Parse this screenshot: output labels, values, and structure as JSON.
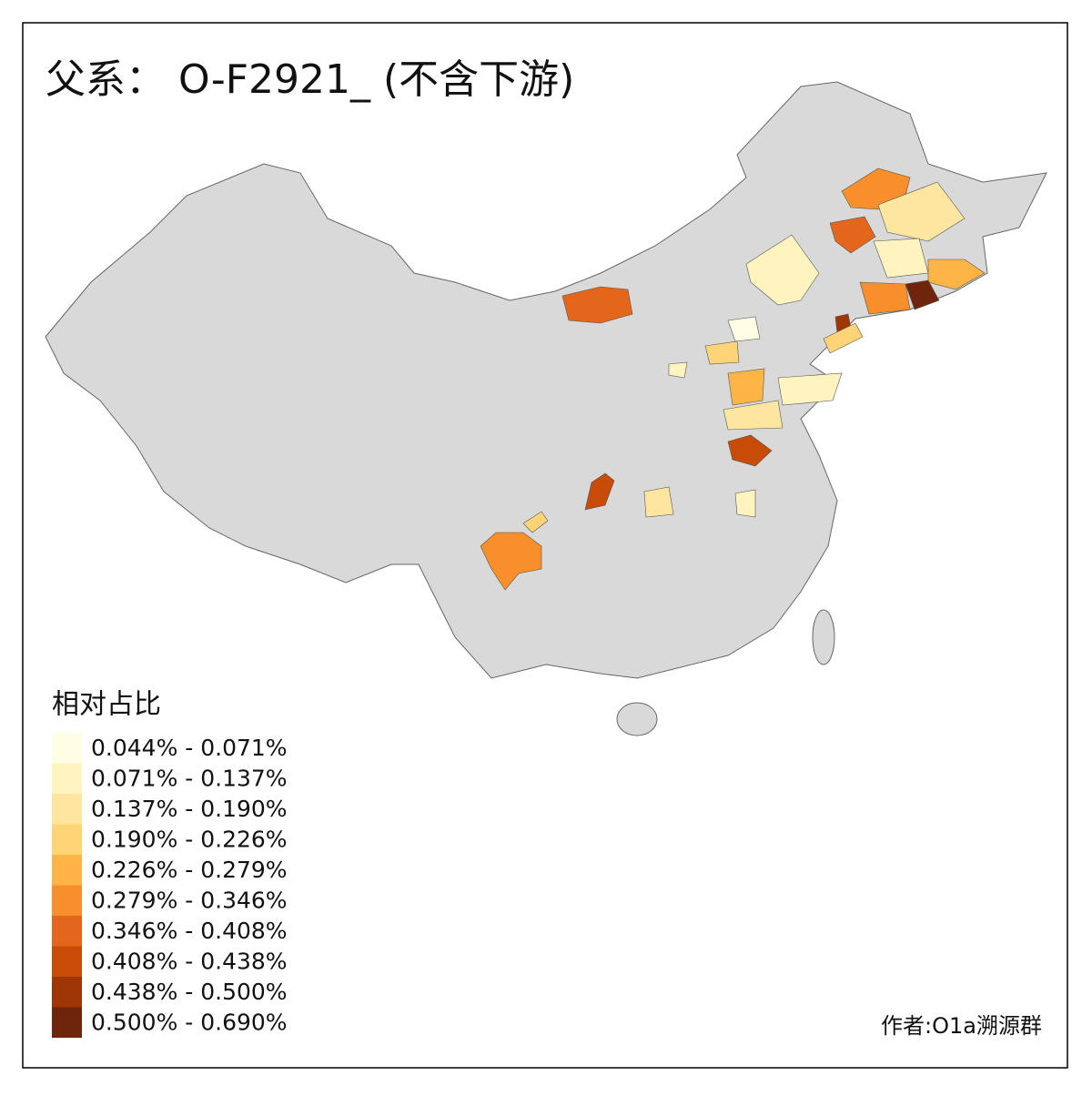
{
  "title": "父系： O-F2921_ (不含下游)",
  "legend": {
    "title": "相对占比",
    "items": [
      {
        "label": "0.044% - 0.071%",
        "color": "#fffde4"
      },
      {
        "label": "0.071% - 0.137%",
        "color": "#fff3c0"
      },
      {
        "label": "0.137% - 0.190%",
        "color": "#fee6a0"
      },
      {
        "label": "0.190% - 0.226%",
        "color": "#fed477"
      },
      {
        "label": "0.226% - 0.279%",
        "color": "#feb546"
      },
      {
        "label": "0.279% - 0.346%",
        "color": "#f98f2a"
      },
      {
        "label": "0.346% - 0.408%",
        "color": "#e3661a"
      },
      {
        "label": "0.408% - 0.438%",
        "color": "#c84b08"
      },
      {
        "label": "0.438% - 0.500%",
        "color": "#a03506"
      },
      {
        "label": "0.500% - 0.690%",
        "color": "#6e250b"
      }
    ]
  },
  "credit": "作者:O1a溯源群"
}
